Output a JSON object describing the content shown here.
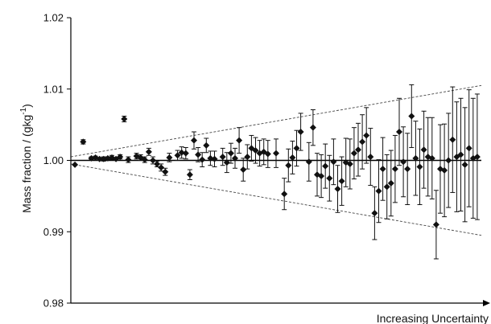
{
  "chart_data": {
    "type": "scatter",
    "title": "",
    "xlabel": "Increasing Uncertainty",
    "ylabel": "Mass fraction / (gkg",
    "ylabel_sup": "-1",
    "ylabel_tail": ")",
    "ylim": [
      0.98,
      1.02
    ],
    "yticks": [
      "0.98",
      "0.99",
      "1.00",
      "1.01",
      "1.02"
    ],
    "ytick_values": [
      0.98,
      0.99,
      1.0,
      1.01,
      1.02
    ],
    "xlim": [
      0,
      100
    ],
    "reference_value": 1.0,
    "grid": false,
    "legend": "none",
    "envelope": {
      "x0": 0,
      "x1": 100,
      "start_halfwidth": 0.0005,
      "end_halfwidth": 0.0105
    },
    "colors": {
      "marker": "#111111",
      "axis": "#000000",
      "envelope": "#444444"
    },
    "series": [
      {
        "x": [
          1,
          3,
          5,
          6,
          7,
          8,
          9,
          10,
          11,
          12,
          13,
          14,
          16,
          17,
          18,
          19,
          20,
          21,
          22,
          23,
          24,
          26,
          27,
          28,
          29,
          30,
          31,
          32,
          33,
          34,
          35,
          37,
          38,
          39,
          40,
          41,
          42,
          43,
          44,
          45,
          46,
          47,
          48,
          50,
          52,
          53,
          54,
          55,
          56,
          58,
          59,
          60,
          61,
          62,
          63,
          64,
          65,
          66,
          67,
          68,
          69,
          70,
          71,
          72,
          73,
          74,
          75,
          76,
          77,
          78,
          79,
          80,
          81,
          82,
          83,
          84,
          85,
          86,
          87,
          88,
          89,
          90,
          91,
          92,
          93,
          94,
          95,
          96,
          97,
          98,
          99
        ],
        "y": [
          0.9994,
          1.0026,
          1.0003,
          1.0004,
          1.0002,
          1.0002,
          1.0003,
          1.0004,
          1.0002,
          1.0005,
          1.0058,
          1.0001,
          1.0006,
          1.0004,
          1.0001,
          1.0012,
          1.0,
          0.9995,
          0.999,
          0.9984,
          1.0004,
          1.0007,
          1.0011,
          1.001,
          0.998,
          1.0028,
          1.0008,
          1.0001,
          1.0021,
          1.0003,
          1.0002,
          1.0005,
          0.9997,
          1.001,
          1.0003,
          1.0028,
          0.9987,
          1.0005,
          1.0017,
          1.0014,
          1.001,
          1.0012,
          1.0009,
          1.001,
          0.9953,
          0.9993,
          1.0004,
          1.0017,
          1.004,
          0.9998,
          1.0046,
          0.998,
          0.9978,
          0.9992,
          0.9975,
          0.9998,
          0.996,
          0.9971,
          0.9997,
          0.9995,
          1.001,
          1.0015,
          1.0026,
          1.0035,
          1.0005,
          0.9926,
          0.9957,
          0.9988,
          0.9963,
          0.9968,
          0.9988,
          1.004,
          0.9998,
          0.9988,
          1.0062,
          1.0003,
          0.9991,
          1.0015,
          1.0005,
          1.0003,
          0.991,
          0.9988,
          0.9986,
          1.0,
          1.0029,
          1.0005,
          1.0008,
          0.9994,
          1.0017,
          1.0003,
          1.0005
        ],
        "err": [
          0,
          0.0003,
          0.0002,
          0.0002,
          0.0002,
          0.0003,
          0.0002,
          0.0003,
          0.0002,
          0.0003,
          0.0004,
          0.0004,
          0.0004,
          0.0004,
          0.0004,
          0.0005,
          0.0005,
          0.0004,
          0.0005,
          0.0005,
          0.0006,
          0.0007,
          0.0008,
          0.0008,
          0.0007,
          0.0012,
          0.001,
          0.001,
          0.001,
          0.001,
          0.0011,
          0.0012,
          0.0014,
          0.0014,
          0.0014,
          0.0018,
          0.0016,
          0.0017,
          0.0018,
          0.0018,
          0.0018,
          0.0018,
          0.0019,
          0.002,
          0.0022,
          0.0023,
          0.0023,
          0.0025,
          0.0026,
          0.0027,
          0.0025,
          0.003,
          0.003,
          0.0031,
          0.0032,
          0.0032,
          0.0033,
          0.0034,
          0.0034,
          0.0035,
          0.0036,
          0.0037,
          0.0038,
          0.0039,
          0.004,
          0.0037,
          0.0044,
          0.0044,
          0.0045,
          0.0046,
          0.0047,
          0.0047,
          0.0049,
          0.005,
          0.0044,
          0.0052,
          0.0053,
          0.0054,
          0.0055,
          0.0057,
          0.0048,
          0.0062,
          0.0065,
          0.0066,
          0.0074,
          0.0077,
          0.0079,
          0.008,
          0.0082,
          0.0084,
          0.0088
        ]
      }
    ]
  }
}
